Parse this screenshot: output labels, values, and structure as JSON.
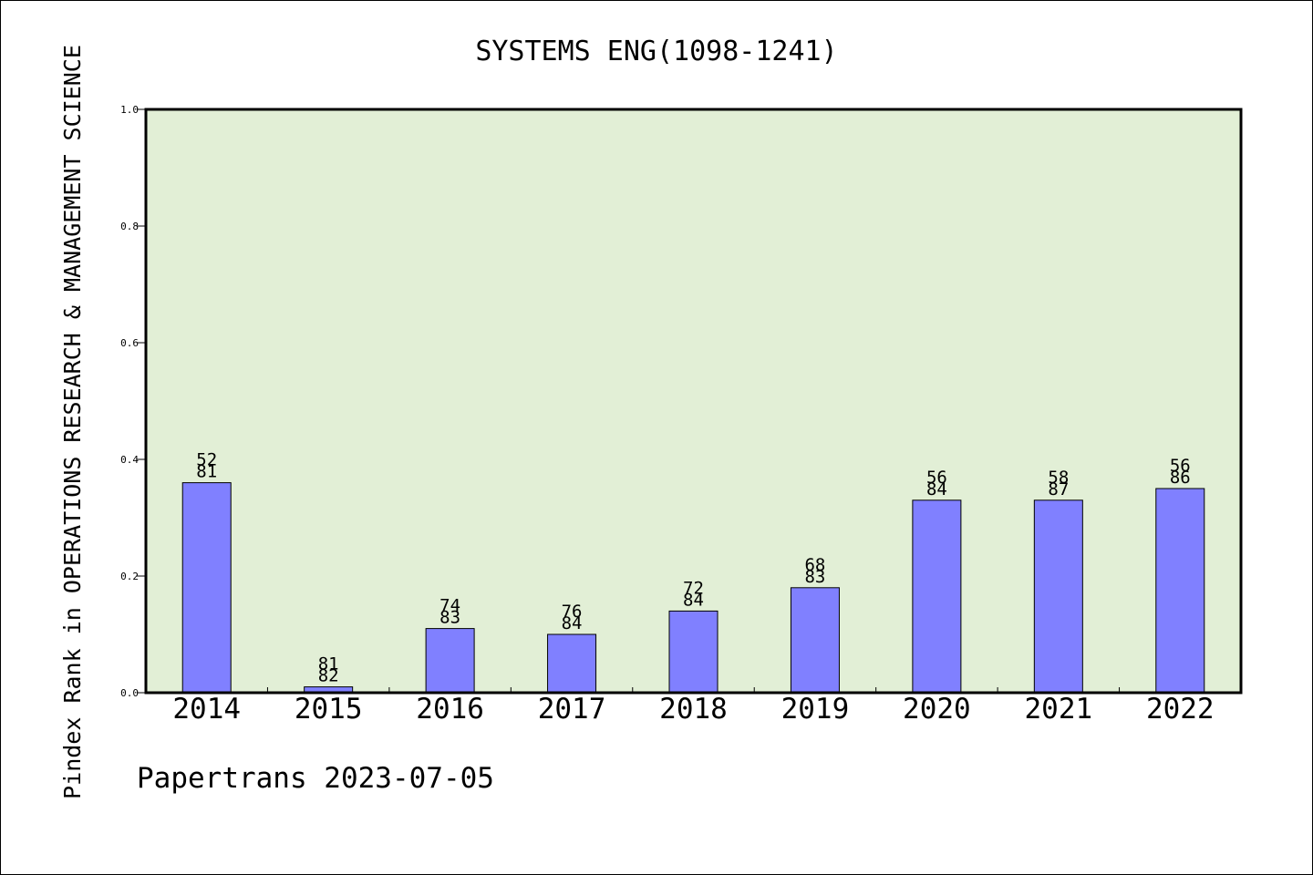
{
  "chart_data": {
    "type": "bar",
    "title": "SYSTEMS ENG(1098-1241)",
    "ylabel": "Pindex Rank in OPERATIONS RESEARCH & MANAGEMENT SCIENCE",
    "xlabel": "",
    "categories": [
      "2014",
      "2015",
      "2016",
      "2017",
      "2018",
      "2019",
      "2020",
      "2021",
      "2022"
    ],
    "values": [
      0.36,
      0.01,
      0.11,
      0.1,
      0.14,
      0.18,
      0.33,
      0.33,
      0.35
    ],
    "labels_top": [
      "52",
      "81",
      "74",
      "76",
      "72",
      "68",
      "56",
      "58",
      "56"
    ],
    "labels_bottom": [
      "81",
      "82",
      "83",
      "84",
      "84",
      "83",
      "84",
      "87",
      "86"
    ],
    "ylim": [
      0,
      1.0
    ],
    "yticks": [
      "0.0",
      "0.2",
      "0.4",
      "0.6",
      "0.8",
      "1.0"
    ],
    "grid": false,
    "colors": {
      "bar": "#8080ff",
      "plot_bg": "#e2efd6",
      "axis": "#000000"
    }
  },
  "footer": {
    "text": "Papertrans 2023-07-05"
  }
}
